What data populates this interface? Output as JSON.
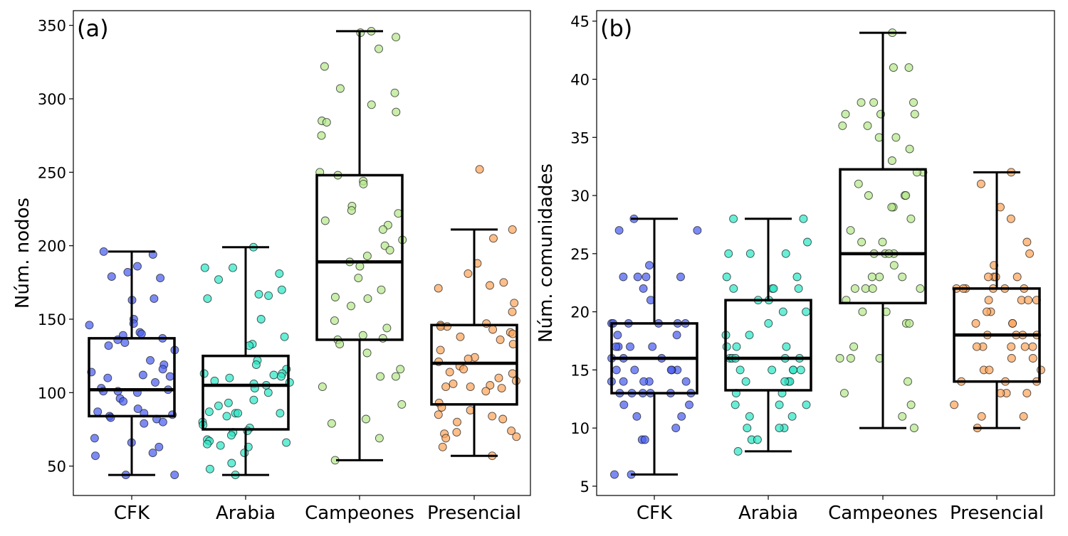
{
  "chart_data": [
    {
      "type": "box",
      "panel_label": "(a)",
      "ylabel": "Núm. nodos",
      "ylim": [
        30,
        360
      ],
      "yticks": [
        50,
        100,
        150,
        200,
        250,
        300,
        350
      ],
      "categories": [
        "CFK",
        "Arabia",
        "Campeones",
        "Presencial"
      ],
      "colors": [
        "#4a5ef0",
        "#2ee8c8",
        "#b6e88a",
        "#fca55c"
      ],
      "boxes": [
        {
          "category": "CFK",
          "whisker_low": 44,
          "q1": 84,
          "median": 102,
          "q3": 137,
          "whisker_high": 196
        },
        {
          "category": "Arabia",
          "whisker_low": 44,
          "q1": 75,
          "median": 105,
          "q3": 125,
          "whisker_high": 199
        },
        {
          "category": "Campeones",
          "whisker_low": 54,
          "q1": 136,
          "median": 189,
          "q3": 248,
          "whisker_high": 346
        },
        {
          "category": "Presencial",
          "whisker_low": 57,
          "q1": 92,
          "median": 120,
          "q3": 146,
          "whisker_high": 211
        }
      ],
      "points": [
        [
          196,
          194,
          186,
          182,
          179,
          178,
          164,
          163,
          150,
          147,
          146,
          141,
          140,
          139,
          137,
          136,
          134,
          132,
          129,
          122,
          119,
          116,
          114,
          112,
          111,
          110,
          107,
          103,
          102,
          101,
          101,
          100,
          96,
          94,
          89,
          87,
          86,
          85,
          84,
          83,
          82,
          80,
          79,
          69,
          66,
          63,
          59,
          57,
          44,
          44
        ],
        [
          199,
          185,
          185,
          181,
          177,
          170,
          167,
          166,
          164,
          150,
          138,
          133,
          132,
          122,
          119,
          116,
          113,
          113,
          112,
          111,
          110,
          108,
          107,
          106,
          105,
          103,
          100,
          95,
          93,
          91,
          87,
          86,
          86,
          86,
          84,
          80,
          78,
          76,
          74,
          73,
          71,
          68,
          67,
          66,
          65,
          64,
          63,
          59,
          52,
          48,
          44
        ],
        [
          346,
          345,
          342,
          334,
          322,
          307,
          304,
          296,
          291,
          285,
          284,
          275,
          250,
          248,
          244,
          242,
          227,
          224,
          222,
          217,
          214,
          211,
          204,
          200,
          197,
          193,
          189,
          186,
          178,
          170,
          165,
          164,
          159,
          149,
          144,
          139,
          137,
          136,
          133,
          127,
          116,
          111,
          111,
          104,
          92,
          82,
          79,
          69,
          54
        ],
        [
          252,
          211,
          205,
          188,
          181,
          175,
          173,
          171,
          161,
          155,
          147,
          146,
          145,
          145,
          143,
          141,
          140,
          138,
          136,
          133,
          129,
          124,
          123,
          121,
          118,
          116,
          114,
          113,
          110,
          108,
          106,
          105,
          104,
          104,
          103,
          101,
          93,
          90,
          88,
          85,
          84,
          82,
          80,
          74,
          73,
          72,
          70,
          69,
          63,
          57
        ]
      ]
    },
    {
      "type": "box",
      "panel_label": "(b)",
      "ylabel": "Núm. comunidades",
      "ylim": [
        4.2,
        45.9
      ],
      "yticks": [
        5,
        10,
        15,
        20,
        25,
        30,
        35,
        40,
        45
      ],
      "categories": [
        "CFK",
        "Arabia",
        "Campeones",
        "Presencial"
      ],
      "colors": [
        "#4a5ef0",
        "#2ee8c8",
        "#b6e88a",
        "#fca55c"
      ],
      "boxes": [
        {
          "category": "CFK",
          "whisker_low": 6,
          "q1": 13,
          "median": 16,
          "q3": 19,
          "whisker_high": 28
        },
        {
          "category": "Arabia",
          "whisker_low": 8,
          "q1": 13.25,
          "median": 16,
          "q3": 21,
          "whisker_high": 28
        },
        {
          "category": "Campeones",
          "whisker_low": 10,
          "q1": 20.75,
          "median": 25,
          "q3": 32.25,
          "whisker_high": 44
        },
        {
          "category": "Presencial",
          "whisker_low": 10,
          "q1": 14,
          "median": 18,
          "q3": 22,
          "whisker_high": 32
        }
      ],
      "points": [
        [
          28,
          27,
          27,
          24,
          23,
          23,
          23,
          23,
          22,
          21,
          19,
          19,
          19,
          19,
          19,
          19,
          18,
          18,
          17,
          17,
          17,
          17,
          16,
          16,
          16,
          15,
          15,
          15,
          15,
          15,
          14,
          14,
          14,
          14,
          14,
          13,
          13,
          13,
          13,
          13,
          13,
          12,
          12,
          11,
          11,
          10,
          9,
          9,
          6,
          6
        ],
        [
          28,
          28,
          26,
          25,
          25,
          25,
          23,
          23,
          22,
          22,
          22,
          22,
          21,
          21,
          20,
          20,
          19,
          18,
          18,
          17,
          17,
          17,
          16,
          16,
          16,
          16,
          16,
          15,
          15,
          15,
          15,
          15,
          14,
          14,
          14,
          14,
          13,
          13,
          12,
          12,
          12,
          11,
          11,
          10,
          10,
          10,
          9,
          9,
          8
        ],
        [
          44,
          41,
          41,
          38,
          38,
          38,
          37,
          37,
          37,
          36,
          36,
          35,
          35,
          34,
          33,
          32,
          32,
          31,
          30,
          30,
          30,
          29,
          29,
          28,
          27,
          26,
          26,
          25,
          25,
          25,
          25,
          24,
          23,
          23,
          23,
          22,
          22,
          22,
          22,
          21,
          20,
          20,
          19,
          19,
          17,
          16,
          16,
          16,
          14,
          13,
          12,
          11,
          10
        ],
        [
          32,
          31,
          29,
          28,
          26,
          25,
          24,
          23,
          23,
          23,
          23,
          22,
          22,
          22,
          22,
          22,
          22,
          21,
          21,
          21,
          21,
          20,
          20,
          19,
          19,
          19,
          18,
          18,
          18,
          18,
          17,
          17,
          17,
          17,
          17,
          16,
          16,
          15,
          15,
          15,
          14,
          14,
          14,
          13,
          13,
          13,
          12,
          11,
          11,
          10
        ]
      ]
    }
  ]
}
